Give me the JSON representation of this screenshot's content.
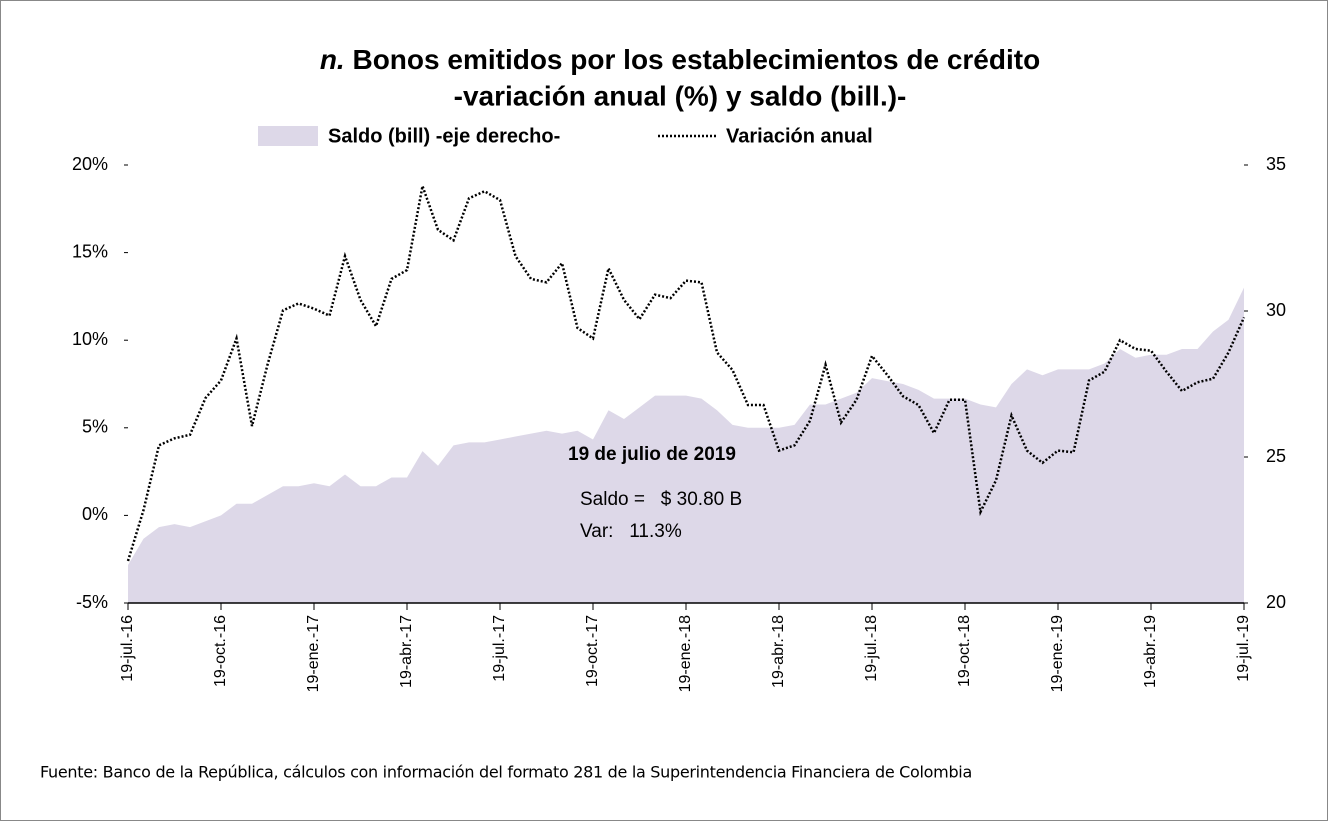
{
  "chart_data": {
    "type": "line",
    "title_marker": "n.",
    "title": "Bonos emitidos por los establecimientos de crédito",
    "subtitle": "-variación anual (%) y saldo (bill.)-",
    "legend": "top",
    "categories": [
      "19-jul.-16",
      null,
      null,
      null,
      null,
      null,
      "19-oct.-16",
      null,
      null,
      null,
      null,
      null,
      "19-ene.-17",
      null,
      null,
      null,
      null,
      null,
      "19-abr.-17",
      null,
      null,
      null,
      null,
      null,
      "19-jul.-17",
      null,
      null,
      null,
      null,
      null,
      "19-oct.-17",
      null,
      null,
      null,
      null,
      null,
      "19-ene.-18",
      null,
      null,
      null,
      null,
      null,
      "19-abr.-18",
      null,
      null,
      null,
      null,
      null,
      "19-jul.-18",
      null,
      null,
      null,
      null,
      null,
      "19-oct.-18",
      null,
      null,
      null,
      null,
      null,
      "19-ene.-19",
      null,
      null,
      null,
      null,
      null,
      "19-abr.-19",
      null,
      null,
      null,
      null,
      null,
      "19-jul.-19"
    ],
    "series": [
      {
        "name": "Saldo (bill) -eje derecho-",
        "type": "area",
        "axis": "y2",
        "color": "#ddd8e8",
        "values": [
          21.3,
          22.2,
          22.6,
          22.7,
          22.6,
          22.8,
          23.0,
          23.4,
          23.4,
          23.7,
          24.0,
          24.0,
          24.1,
          24.0,
          24.4,
          24.0,
          24.0,
          24.3,
          24.3,
          25.2,
          24.7,
          25.4,
          25.5,
          25.5,
          25.6,
          25.7,
          25.8,
          25.9,
          25.8,
          25.9,
          25.6,
          26.6,
          26.3,
          26.7,
          27.1,
          27.1,
          27.1,
          27.0,
          26.6,
          26.1,
          26.0,
          26.0,
          26.0,
          26.1,
          26.8,
          26.8,
          27.0,
          27.2,
          27.7,
          27.6,
          27.5,
          27.3,
          27.0,
          27.0,
          27.0,
          26.8,
          26.7,
          27.5,
          28.0,
          27.8,
          28.0,
          28.0,
          28.0,
          28.2,
          28.7,
          28.4,
          28.5,
          28.5,
          28.7,
          28.7,
          29.3,
          29.7,
          30.8
        ]
      },
      {
        "name": "Variación anual",
        "type": "line",
        "axis": "y",
        "color": "#000000",
        "values": [
          -2.6,
          0.3,
          4.0,
          4.4,
          4.6,
          6.7,
          7.7,
          10.1,
          5.1,
          8.6,
          11.7,
          12.1,
          11.8,
          11.4,
          14.8,
          12.3,
          10.8,
          13.5,
          14.0,
          18.8,
          16.3,
          15.7,
          18.1,
          18.5,
          18.0,
          14.8,
          13.5,
          13.3,
          14.4,
          10.7,
          10.1,
          14.1,
          12.3,
          11.2,
          12.6,
          12.4,
          13.4,
          13.3,
          9.3,
          8.3,
          6.3,
          6.3,
          3.7,
          4.0,
          5.4,
          8.6,
          5.3,
          6.6,
          9.1,
          8.0,
          6.8,
          6.3,
          4.7,
          6.6,
          6.6,
          0.2,
          2.0,
          5.7,
          3.7,
          3.0,
          3.7,
          3.6,
          7.7,
          8.2,
          10.0,
          9.5,
          9.4,
          8.2,
          7.1,
          7.6,
          7.8,
          9.3,
          11.3
        ]
      }
    ],
    "ylim": [
      -5,
      20
    ],
    "yticks": [
      {
        "value": -5,
        "label": "-5%"
      },
      {
        "value": 0,
        "label": "0%"
      },
      {
        "value": 5,
        "label": "5%"
      },
      {
        "value": 10,
        "label": "10%"
      },
      {
        "value": 15,
        "label": "15%"
      },
      {
        "value": 20,
        "label": "20%"
      }
    ],
    "y2lim": [
      20,
      35
    ],
    "y2ticks": [
      20,
      25,
      30,
      35
    ],
    "annotations": [
      "19 de julio de 2019",
      "Saldo =   $ 30.80 B",
      "Var:   11.3%"
    ],
    "source": "Fuente:  Banco de la República, cálculos con información del formato 281 de la Superintendencia Financiera de Colombia"
  }
}
